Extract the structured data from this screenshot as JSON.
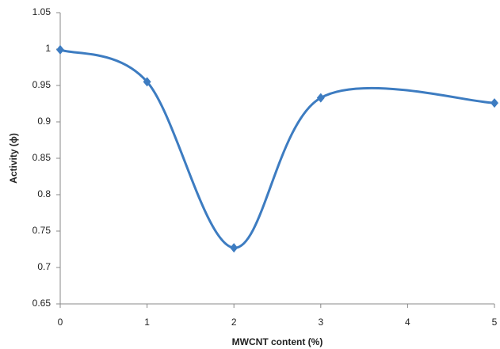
{
  "chart_data": {
    "type": "line",
    "x_label": "MWCNT content (%)",
    "y_label": "Activity (ϕ)",
    "x": [
      0,
      1,
      2,
      3,
      5
    ],
    "series": [
      {
        "color": "#3d7cc1",
        "values": [
          0.999,
          0.955,
          0.727,
          0.933,
          0.926
        ]
      }
    ],
    "xlim": [
      0,
      5
    ],
    "xticks": [
      0,
      1,
      2,
      3,
      4,
      5
    ],
    "ylim": [
      0.65,
      1.05
    ],
    "yticks": [
      0.65,
      0.7,
      0.75,
      0.8,
      0.85,
      0.9,
      0.95,
      1,
      1.05
    ],
    "smooth": true,
    "marker": "diamond"
  }
}
